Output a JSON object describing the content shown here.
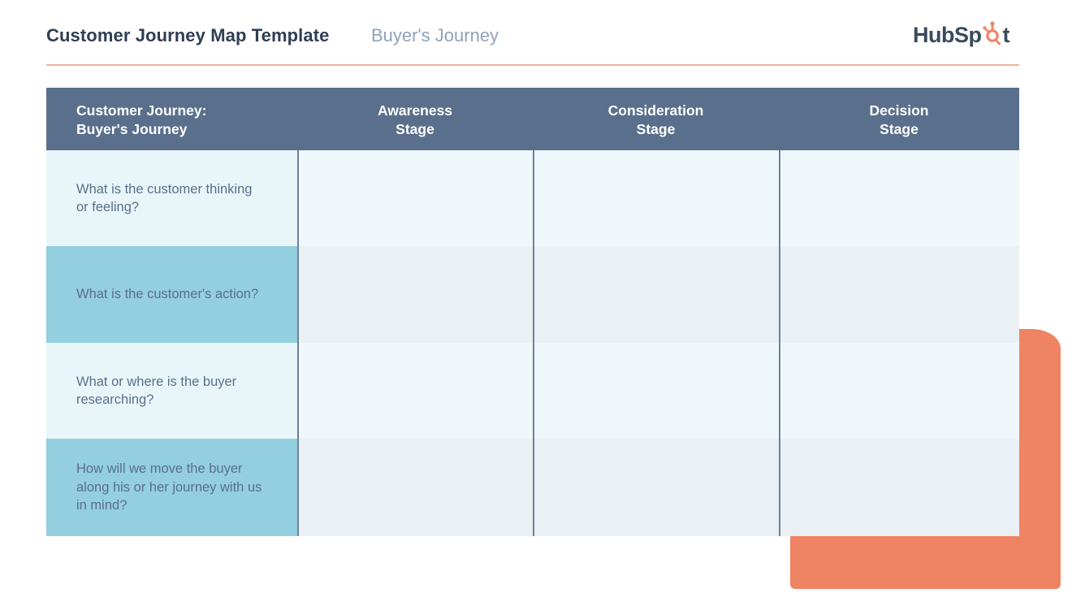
{
  "header": {
    "title": "Customer Journey Map Template",
    "subtitle": "Buyer's Journey",
    "logo_left": "HubSp",
    "logo_right": "t",
    "brand_color": "#ef8464"
  },
  "table": {
    "columns": [
      "Customer Journey:\nBuyer's Journey",
      "Awareness\nStage",
      "Consideration\nStage",
      "Decision\nStage"
    ],
    "rows": [
      {
        "question": "What is the customer thinking or feeling?",
        "cells": [
          "",
          "",
          ""
        ]
      },
      {
        "question": "What is the customer's action?",
        "cells": [
          "",
          "",
          ""
        ]
      },
      {
        "question": "What or where is the buyer researching?",
        "cells": [
          "",
          "",
          ""
        ]
      },
      {
        "question": "How will we move the buyer along his or her journey with us in mind?",
        "cells": [
          "",
          "",
          ""
        ]
      }
    ],
    "colors": {
      "header_bg": "#5a6f8c",
      "label_light": "#e9f6f9",
      "label_teal": "#93cfde",
      "cell_light": "#f0f7fa",
      "cell_gray": "#ebf0f4"
    }
  }
}
